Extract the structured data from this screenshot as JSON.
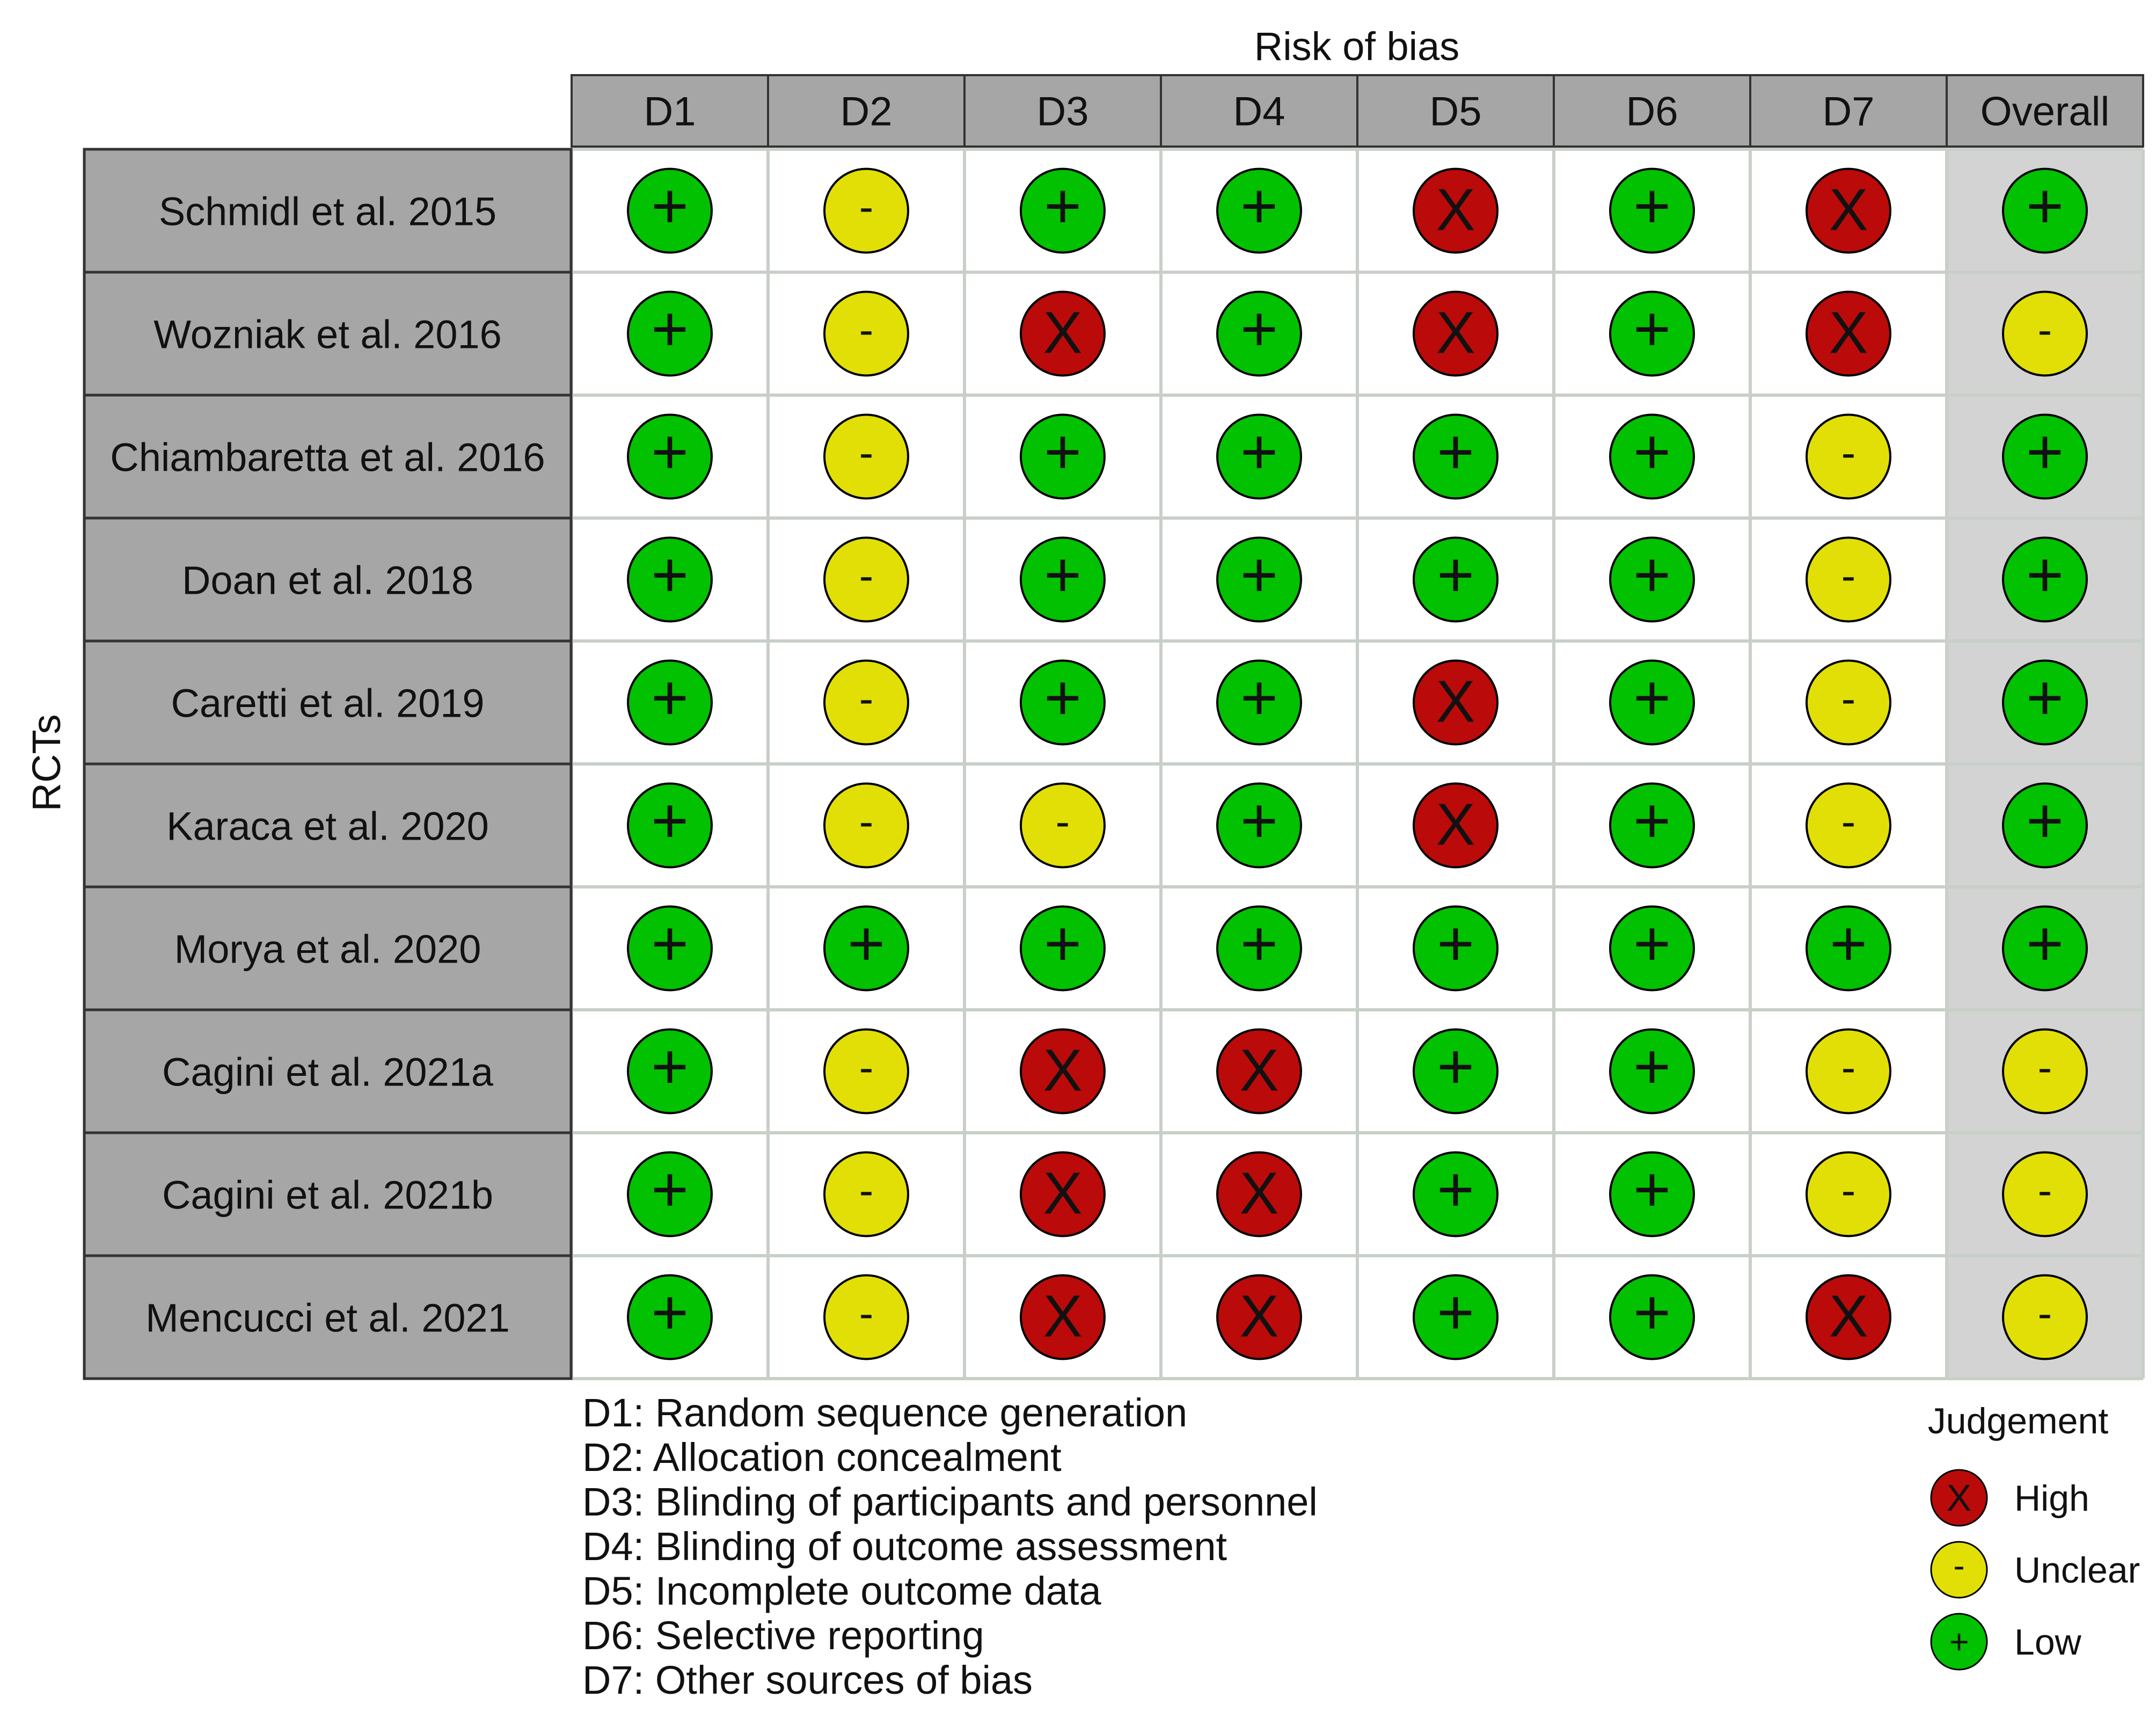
{
  "chart_data": {
    "type": "table",
    "title": "Risk of bias",
    "ylabel": "RCTs",
    "domains": [
      "D1",
      "D2",
      "D3",
      "D4",
      "D5",
      "D6",
      "D7",
      "Overall"
    ],
    "studies": [
      {
        "name": "Schmidl et al. 2015",
        "judgements": [
          "low",
          "unclear",
          "low",
          "low",
          "high",
          "low",
          "high",
          "low"
        ]
      },
      {
        "name": "Wozniak et al. 2016",
        "judgements": [
          "low",
          "unclear",
          "high",
          "low",
          "high",
          "low",
          "high",
          "unclear"
        ]
      },
      {
        "name": "Chiambaretta et al. 2016",
        "judgements": [
          "low",
          "unclear",
          "low",
          "low",
          "low",
          "low",
          "unclear",
          "low"
        ]
      },
      {
        "name": "Doan et al. 2018",
        "judgements": [
          "low",
          "unclear",
          "low",
          "low",
          "low",
          "low",
          "unclear",
          "low"
        ]
      },
      {
        "name": "Caretti et al. 2019",
        "judgements": [
          "low",
          "unclear",
          "low",
          "low",
          "high",
          "low",
          "unclear",
          "low"
        ]
      },
      {
        "name": "Karaca et al. 2020",
        "judgements": [
          "low",
          "unclear",
          "unclear",
          "low",
          "high",
          "low",
          "unclear",
          "low"
        ]
      },
      {
        "name": "Morya et al.  2020",
        "judgements": [
          "low",
          "low",
          "low",
          "low",
          "low",
          "low",
          "low",
          "low"
        ]
      },
      {
        "name": "Cagini et al. 2021a",
        "judgements": [
          "low",
          "unclear",
          "high",
          "high",
          "low",
          "low",
          "unclear",
          "unclear"
        ]
      },
      {
        "name": "Cagini et al. 2021b",
        "judgements": [
          "low",
          "unclear",
          "high",
          "high",
          "low",
          "low",
          "unclear",
          "unclear"
        ]
      },
      {
        "name": "Mencucci et al. 2021",
        "judgements": [
          "low",
          "unclear",
          "high",
          "high",
          "low",
          "low",
          "high",
          "unclear"
        ]
      }
    ],
    "domain_descriptions": [
      "D1: Random sequence generation",
      "D2: Allocation concealment",
      "D3: Blinding of participants and personnel",
      "D4: Blinding of outcome assessment",
      "D5: Incomplete outcome data",
      "D6: Selective reporting",
      "D7: Other sources of bias"
    ],
    "legend": {
      "title": "Judgement",
      "items": [
        {
          "key": "high",
          "label": "High",
          "symbol": "X"
        },
        {
          "key": "unclear",
          "label": "Unclear",
          "symbol": "-"
        },
        {
          "key": "low",
          "label": "Low",
          "symbol": "+"
        }
      ]
    },
    "colors": {
      "high": "#bb0a0a",
      "unclear": "#e2df07",
      "low": "#02c100",
      "header_fill": "#a6a6a6",
      "overall_column_fill": "#d3d3d3",
      "grid": "#c8cfc8"
    }
  }
}
